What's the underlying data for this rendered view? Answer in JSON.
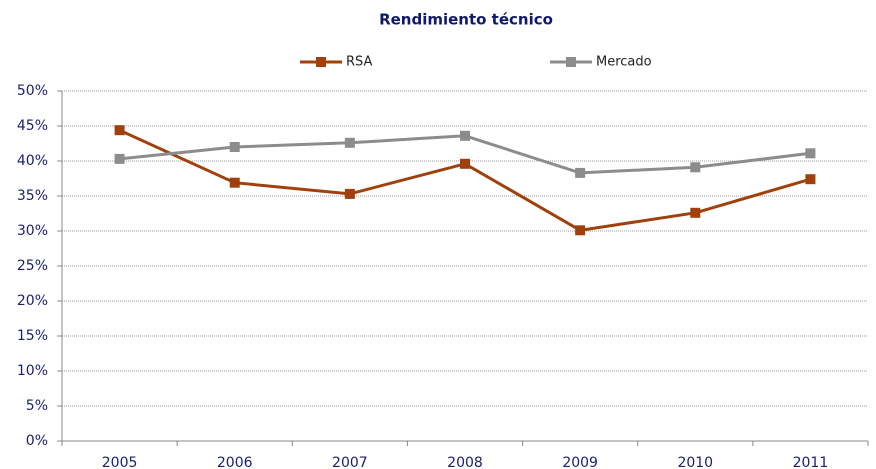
{
  "chart_data": {
    "type": "line",
    "title": "Rendimiento técnico",
    "categories": [
      "2005",
      "2006",
      "2007",
      "2008",
      "2009",
      "2010",
      "2011"
    ],
    "series": [
      {
        "name": "RSA",
        "color": "#a0410d",
        "values": [
          44.4,
          36.9,
          35.3,
          39.6,
          30.1,
          32.6,
          37.4
        ]
      },
      {
        "name": "Mercado",
        "color": "#8c8c8c",
        "values": [
          40.3,
          42.0,
          42.6,
          43.6,
          38.3,
          39.1,
          41.1
        ]
      }
    ],
    "ylim": [
      0,
      50
    ],
    "yticks": [
      {
        "value": 0,
        "label": "0%"
      },
      {
        "value": 5,
        "label": "5%"
      },
      {
        "value": 10,
        "label": "10%"
      },
      {
        "value": 15,
        "label": "15%"
      },
      {
        "value": 20,
        "label": "20%"
      },
      {
        "value": 25,
        "label": "25%"
      },
      {
        "value": 30,
        "label": "30%"
      },
      {
        "value": 35,
        "label": "35%"
      },
      {
        "value": 40,
        "label": "40%"
      },
      {
        "value": 45,
        "label": "45%"
      },
      {
        "value": 50,
        "label": "50%"
      }
    ],
    "grid": true,
    "legend": "top"
  }
}
